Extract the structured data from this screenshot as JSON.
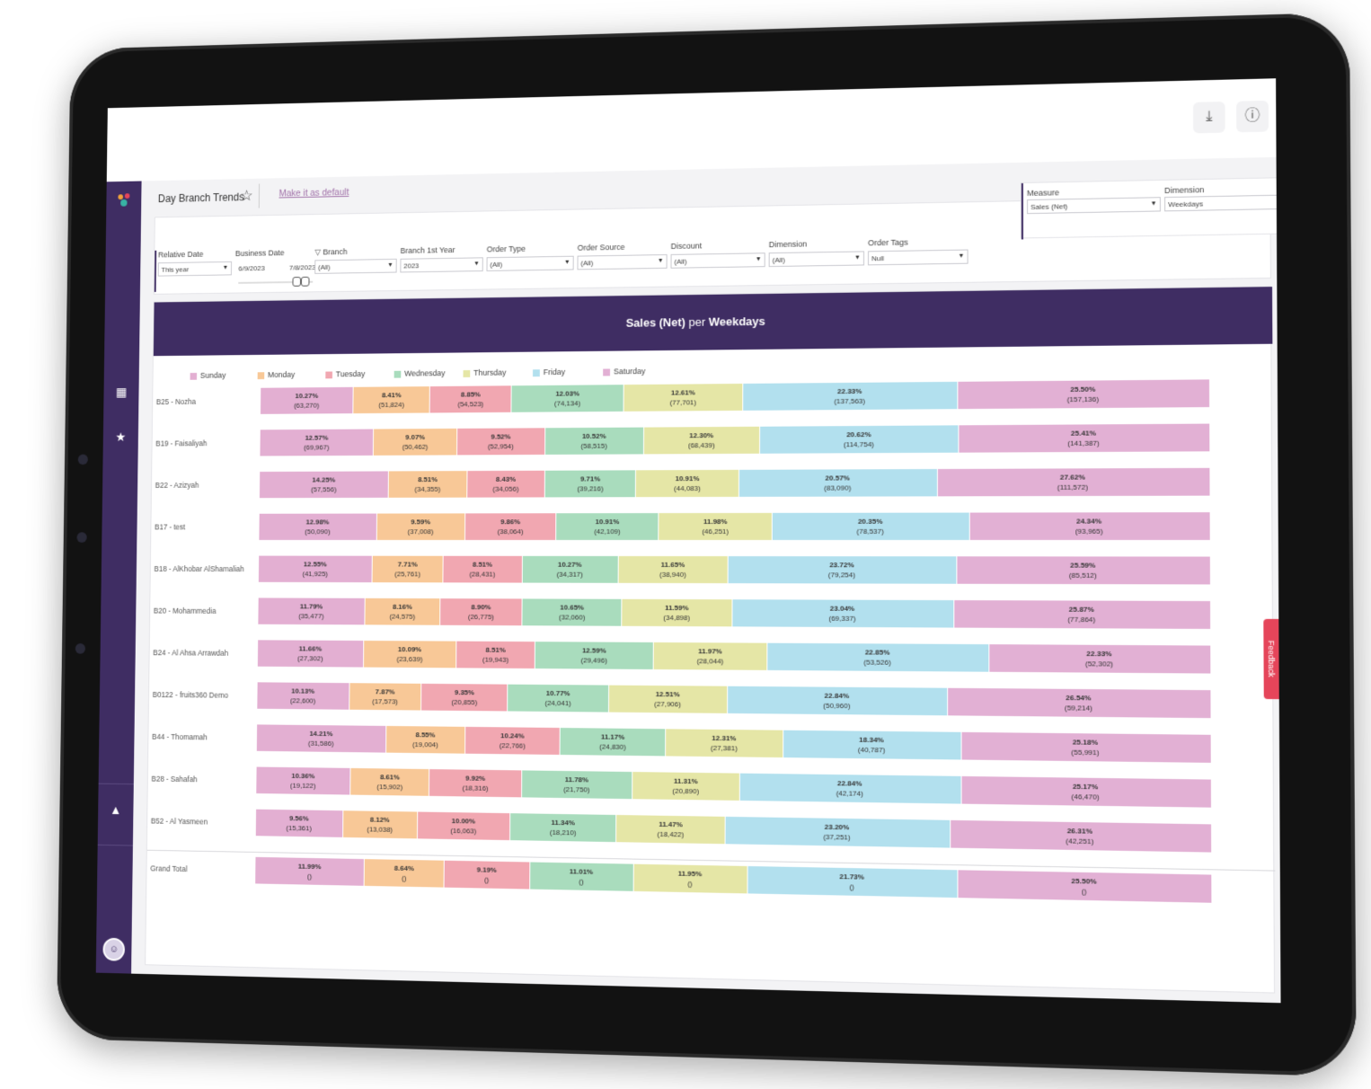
{
  "header": {
    "download_icon": "download-icon",
    "info_icon": "info-icon"
  },
  "page": {
    "title": "Day Branch Trends",
    "make_default": "Make it as default"
  },
  "filters": {
    "relative_date": {
      "label": "Relative Date",
      "value": "This year"
    },
    "business_date": {
      "label": "Business Date",
      "from": "6/9/2023",
      "to": "7/8/2023"
    },
    "branch": {
      "label": "Branch",
      "value": "(All)"
    },
    "branch_first_year": {
      "label": "Branch 1st Year",
      "value": "2023"
    },
    "order_type": {
      "label": "Order Type",
      "value": "(All)"
    },
    "order_source": {
      "label": "Order Source",
      "value": "(All)"
    },
    "discount": {
      "label": "Discount",
      "value": "(All)"
    },
    "dimension": {
      "label": "Dimension",
      "value": "(All)"
    },
    "order_tags": {
      "label": "Order Tags",
      "value": "Null"
    }
  },
  "measure": {
    "label": "Measure",
    "value": "Sales (Net)"
  },
  "dimension_select": {
    "label": "Dimension",
    "value": "Weekdays"
  },
  "chart": {
    "title_measure": "Sales (Net)",
    "title_per": "per",
    "title_dim": "Weekdays"
  },
  "feedback_label": "Feedback",
  "chart_data": {
    "type": "bar",
    "stacked": "100%",
    "title": "Sales (Net) per Weekdays",
    "categories": [
      "B25 - Nozha",
      "B19 - Faisaliyah",
      "B22 - Azizyah",
      "B17 - test",
      "B18 - AlKhobar AlShamaliah",
      "B20 - Mohammedia",
      "B24 - Al Ahsa Arrawdah",
      "B0122 - fruits360 Demo",
      "B44 - Thomamah",
      "B28 - Sahafah",
      "B52 - Al Yasmeen",
      "Grand Total"
    ],
    "colors": [
      "#e3afd2",
      "#f8c897",
      "#f1a7b1",
      "#a9dcbd",
      "#e5e6a6",
      "#b2e0ee",
      "#e2b0d4"
    ],
    "series": [
      {
        "name": "Sunday",
        "pct": [
          "10.27%",
          "12.57%",
          "14.25%",
          "12.98%",
          "12.55%",
          "11.79%",
          "11.66%",
          "10.13%",
          "14.21%",
          "10.36%",
          "9.56%",
          "11.99%"
        ],
        "values": [
          "(63,270)",
          "(69,967)",
          "(57,556)",
          "(50,090)",
          "(41,925)",
          "(35,477)",
          "(27,302)",
          "(22,600)",
          "(31,586)",
          "(19,122)",
          "(15,361)",
          "()"
        ]
      },
      {
        "name": "Monday",
        "pct": [
          "8.41%",
          "9.07%",
          "8.51%",
          "9.59%",
          "7.71%",
          "8.16%",
          "10.09%",
          "7.87%",
          "8.55%",
          "8.61%",
          "8.12%",
          "8.64%"
        ],
        "values": [
          "(51,824)",
          "(50,462)",
          "(34,355)",
          "(37,008)",
          "(25,761)",
          "(24,575)",
          "(23,639)",
          "(17,573)",
          "(19,004)",
          "(15,902)",
          "(13,038)",
          "()"
        ]
      },
      {
        "name": "Tuesday",
        "pct": [
          "8.85%",
          "9.52%",
          "8.43%",
          "9.86%",
          "8.51%",
          "8.90%",
          "8.51%",
          "9.35%",
          "10.24%",
          "9.92%",
          "10.00%",
          "9.19%"
        ],
        "values": [
          "(54,523)",
          "(52,954)",
          "(34,056)",
          "(38,064)",
          "(28,431)",
          "(26,775)",
          "(19,943)",
          "(20,855)",
          "(22,766)",
          "(18,316)",
          "(16,063)",
          "()"
        ]
      },
      {
        "name": "Wednesday",
        "pct": [
          "12.03%",
          "10.52%",
          "9.71%",
          "10.91%",
          "10.27%",
          "10.65%",
          "12.59%",
          "10.77%",
          "11.17%",
          "11.78%",
          "11.34%",
          "11.01%"
        ],
        "values": [
          "(74,134)",
          "(58,515)",
          "(39,216)",
          "(42,109)",
          "(34,317)",
          "(32,060)",
          "(29,496)",
          "(24,041)",
          "(24,830)",
          "(21,750)",
          "(18,210)",
          "()"
        ]
      },
      {
        "name": "Thursday",
        "pct": [
          "12.61%",
          "12.30%",
          "10.91%",
          "11.98%",
          "11.65%",
          "11.59%",
          "11.97%",
          "12.51%",
          "12.31%",
          "11.31%",
          "11.47%",
          "11.95%"
        ],
        "values": [
          "(77,701)",
          "(68,439)",
          "(44,083)",
          "(46,251)",
          "(38,940)",
          "(34,898)",
          "(28,044)",
          "(27,906)",
          "(27,381)",
          "(20,890)",
          "(18,422)",
          "()"
        ]
      },
      {
        "name": "Friday",
        "pct": [
          "22.33%",
          "20.62%",
          "20.57%",
          "20.35%",
          "23.72%",
          "23.04%",
          "22.85%",
          "22.84%",
          "18.34%",
          "22.84%",
          "23.20%",
          "21.73%"
        ],
        "values": [
          "(137,563)",
          "(114,754)",
          "(83,090)",
          "(78,537)",
          "(79,254)",
          "(69,337)",
          "(53,526)",
          "(50,960)",
          "(40,787)",
          "(42,174)",
          "(37,251)",
          "()"
        ]
      },
      {
        "name": "Saturday",
        "pct": [
          "25.50%",
          "25.41%",
          "27.62%",
          "24.34%",
          "25.59%",
          "25.87%",
          "22.33%",
          "26.54%",
          "25.18%",
          "25.17%",
          "26.31%",
          "25.50%"
        ],
        "values": [
          "(157,136)",
          "(141,387)",
          "(111,572)",
          "(93,965)",
          "(85,512)",
          "(77,864)",
          "(52,302)",
          "(59,214)",
          "(55,991)",
          "(46,470)",
          "(42,251)",
          "()"
        ]
      }
    ]
  }
}
